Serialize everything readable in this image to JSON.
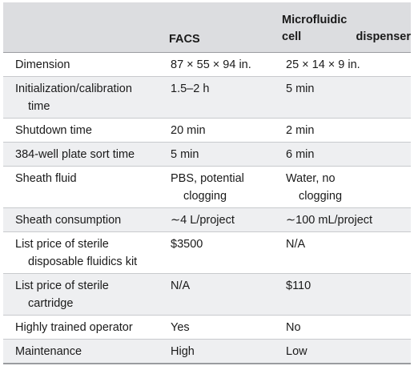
{
  "header": {
    "col1": "",
    "col2": "FACS",
    "col3_line1": "Microfluidic cell",
    "col3_line2": "dispenser"
  },
  "rows": [
    {
      "label": [
        "Dimension"
      ],
      "facs": [
        "87 × 55 × 94 in."
      ],
      "mcd": [
        "25 × 14 × 9 in."
      ]
    },
    {
      "label": [
        "Initialization/calibration",
        "time"
      ],
      "facs": [
        "1.5–2 h"
      ],
      "mcd": [
        "5 min"
      ]
    },
    {
      "label": [
        "Shutdown time"
      ],
      "facs": [
        "20 min"
      ],
      "mcd": [
        "2 min"
      ]
    },
    {
      "label": [
        "384-well plate sort time"
      ],
      "facs": [
        "5 min"
      ],
      "mcd": [
        "6 min"
      ]
    },
    {
      "label": [
        "Sheath fluid"
      ],
      "facs": [
        "PBS, potential",
        "clogging"
      ],
      "mcd": [
        "Water, no",
        "clogging"
      ]
    },
    {
      "label": [
        "Sheath consumption"
      ],
      "facs": [
        "∼4 L/project"
      ],
      "mcd": [
        "∼100 mL/project"
      ]
    },
    {
      "label": [
        "List price of sterile",
        "disposable fluidics kit"
      ],
      "facs": [
        "$3500"
      ],
      "mcd": [
        "N/A"
      ]
    },
    {
      "label": [
        "List price of sterile",
        "cartridge"
      ],
      "facs": [
        "N/A"
      ],
      "mcd": [
        "$110"
      ]
    },
    {
      "label": [
        "Highly trained operator"
      ],
      "facs": [
        "Yes"
      ],
      "mcd": [
        "No"
      ]
    },
    {
      "label": [
        "Maintenance"
      ],
      "facs": [
        "High"
      ],
      "mcd": [
        "Low"
      ]
    }
  ]
}
